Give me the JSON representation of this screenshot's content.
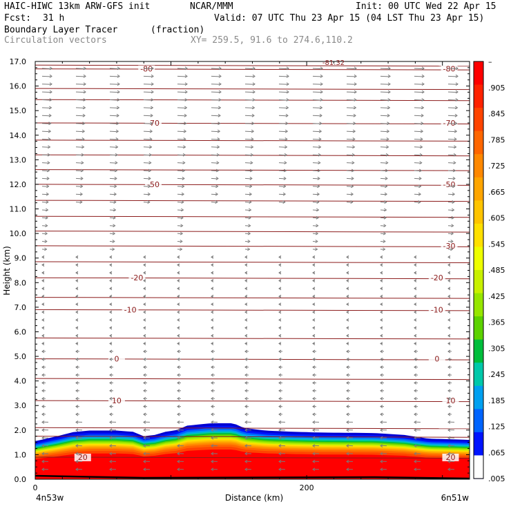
{
  "header": {
    "model": "HAIC-HIWC 13km ARW-GFS init",
    "org": "NCAR/MMM",
    "init": "Init: 00 UTC Wed 22 Apr 15",
    "fcst_label": "Fcst:",
    "fcst_value": "31 h",
    "valid": "Valid: 07 UTC Thu 23 Apr 15 (04 LST Thu 23 Apr 15)",
    "field_name": "Boundary Layer Tracer",
    "field_units": "(fraction)",
    "vector_label": "Circulation vectors",
    "xy_label": "XY= 259.5, 91.6 to 274.6,110.2"
  },
  "colors": {
    "contour": "#8b1a1a",
    "vector": "#7a7a7a",
    "ground": "#000000"
  },
  "chart_data": {
    "type": "heatmap",
    "xlabel": "Distance (km)",
    "ylabel": "Height (km)",
    "xlim": [
      0,
      320
    ],
    "ylim": [
      0,
      17
    ],
    "x_ticks": [
      0,
      200
    ],
    "x_tick_labels": [
      "0",
      "200"
    ],
    "x_endpoints": [
      "4n53w",
      "6n51w"
    ],
    "y_ticks": [
      0,
      1,
      2,
      3,
      4,
      5,
      6,
      7,
      8,
      9,
      10,
      11,
      12,
      13,
      14,
      15,
      16,
      17
    ],
    "y_tick_labels": [
      "0.0",
      "1.0",
      "2.0",
      "3.0",
      "4.0",
      "5.0",
      "6.0",
      "7.0",
      "8.0",
      "9.0",
      "10.0",
      "11.0",
      "12.0",
      "13.0",
      "14.0",
      "15.0",
      "16.0",
      "17.0"
    ],
    "colorbar": {
      "labels": [
        "–",
        ".905",
        ".845",
        ".785",
        ".725",
        ".665",
        ".605",
        ".545",
        ".485",
        ".425",
        ".365",
        ".305",
        ".245",
        ".185",
        ".125",
        ".065",
        ".005"
      ],
      "colors": [
        "#ff0000",
        "#ff2200",
        "#ff4400",
        "#ff6600",
        "#ff8800",
        "#ffa500",
        "#ffc400",
        "#ffe000",
        "#eeff00",
        "#c8f000",
        "#96e600",
        "#5cd200",
        "#00be3c",
        "#00c8aa",
        "#00a0f0",
        "#0064ff",
        "#0014ff",
        "#0000d2"
      ]
    },
    "tracer_top_km": [
      [
        0,
        1.55
      ],
      [
        8,
        1.65
      ],
      [
        16,
        1.75
      ],
      [
        28,
        1.92
      ],
      [
        40,
        1.98
      ],
      [
        60,
        1.98
      ],
      [
        72,
        1.93
      ],
      [
        80,
        1.75
      ],
      [
        88,
        1.8
      ],
      [
        96,
        1.93
      ],
      [
        104,
        2.0
      ],
      [
        112,
        2.18
      ],
      [
        130,
        2.28
      ],
      [
        146,
        2.28
      ],
      [
        154,
        2.08
      ],
      [
        170,
        1.98
      ],
      [
        190,
        1.93
      ],
      [
        210,
        1.9
      ],
      [
        250,
        1.88
      ],
      [
        272,
        1.8
      ],
      [
        290,
        1.65
      ],
      [
        310,
        1.62
      ],
      [
        320,
        1.6
      ]
    ],
    "isotherms": [
      {
        "label": "-80",
        "y": 16.7,
        "label_x": [
          82,
          305
        ]
      },
      {
        "label": "-70",
        "y": 14.5,
        "label_x": [
          87,
          305
        ]
      },
      {
        "label": "-50",
        "y": 12.0,
        "label_x": [
          87,
          305
        ]
      },
      {
        "label": "-30",
        "y": 9.5,
        "label_x": [
          305
        ]
      },
      {
        "label": "-20",
        "y": 8.2,
        "label_x": [
          75,
          296
        ]
      },
      {
        "label": "-10",
        "y": 6.9,
        "label_x": [
          70,
          296
        ]
      },
      {
        "label": "0",
        "y": 4.9,
        "label_x": [
          60,
          296
        ]
      },
      {
        "label": "10",
        "y": 3.2,
        "label_x": [
          60,
          306
        ]
      },
      {
        "label": "20",
        "y": 0.9,
        "label_x": [
          35,
          306
        ]
      }
    ],
    "extra_contour_heights_km": [
      1.75,
      2.1,
      4.1,
      5.75,
      7.4,
      8.85,
      10.1,
      10.7,
      11.35,
      12.6,
      13.2,
      13.8,
      15.45,
      15.9,
      16.85
    ],
    "top_label": "-81.32"
  }
}
